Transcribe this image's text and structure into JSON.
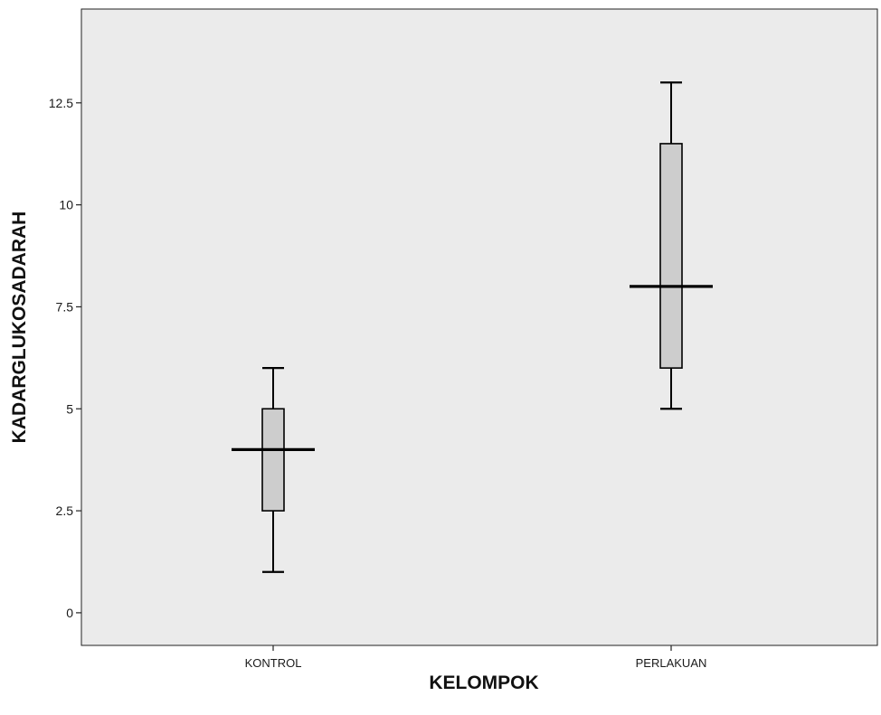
{
  "chart_data": {
    "type": "boxplot",
    "title": "",
    "xlabel": "KELOMPOK",
    "ylabel": "KADARGLUKOSADARAH",
    "ylim": [
      -0.8,
      14.8
    ],
    "yticks": [
      0,
      2.5,
      5,
      7.5,
      10,
      12.5
    ],
    "ytick_labels": [
      "0",
      "2.5",
      "5",
      "7.5",
      "10",
      "12.5"
    ],
    "categories": [
      "KONTROL",
      "PERLAKUAN"
    ],
    "boxes": [
      {
        "category": "KONTROL",
        "min": 1.0,
        "q1": 2.5,
        "median": 4.0,
        "q3": 5.0,
        "max": 6.0
      },
      {
        "category": "PERLAKUAN",
        "min": 5.0,
        "q1": 6.0,
        "median": 8.0,
        "q3": 11.5,
        "max": 13.0
      }
    ],
    "grid": false,
    "legend": "none",
    "colors": {
      "plot_background": "#ebebeb",
      "box_fill": "#cdcdcd",
      "stroke": "#000000"
    }
  }
}
